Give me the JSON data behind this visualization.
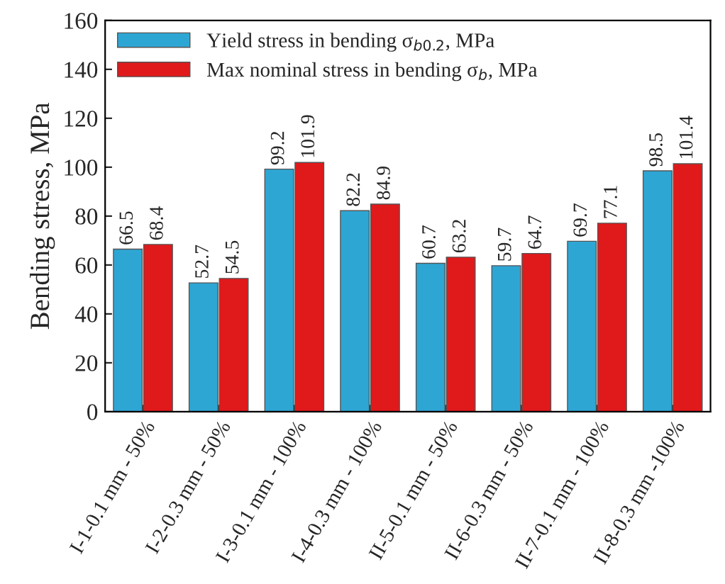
{
  "chart_data": {
    "type": "bar",
    "ylabel": "Bending stress, MPa",
    "categories": [
      "I-1-0.1 mm - 50%",
      "I-2-0.3 mm - 50%",
      "I-3-0.1 mm - 100%",
      "I-4-0.3 mm - 100%",
      "II-5-0.1 mm - 50%",
      "II-6-0.3 mm - 50%",
      "II-7-0.1 mm - 100%",
      "II-8-0.3 mm -100%"
    ],
    "series": [
      {
        "name": "Yield stress in bending σ$_{b0.2}$, MPa",
        "color": "#2ea6d4",
        "values": [
          66.5,
          52.7,
          99.2,
          82.2,
          60.7,
          59.7,
          69.7,
          98.5
        ]
      },
      {
        "name": "Max nominal stress in bending σ$_{b}$, MPa",
        "color": "#e0191b",
        "values": [
          68.4,
          54.5,
          101.9,
          84.9,
          63.2,
          64.7,
          77.1,
          101.4
        ]
      }
    ],
    "ylim": [
      0,
      160
    ],
    "yticks": [
      0,
      20,
      40,
      60,
      80,
      100,
      120,
      140,
      160
    ],
    "data_labels": true,
    "legend": "top left",
    "grid": false
  }
}
